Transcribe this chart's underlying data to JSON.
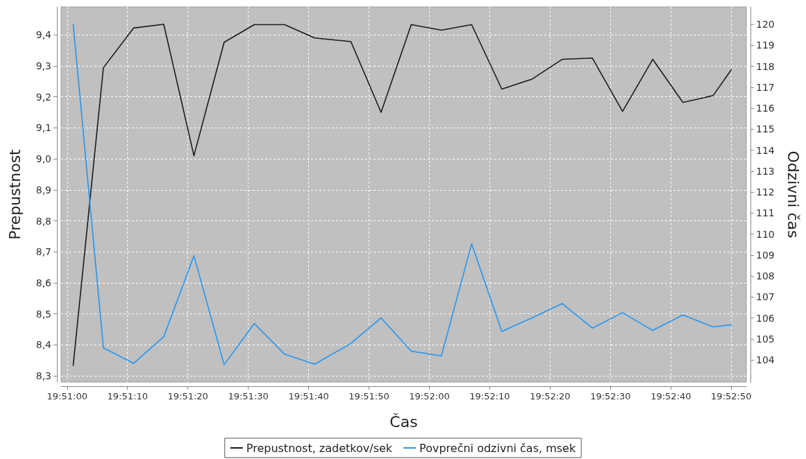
{
  "chart_data": {
    "type": "line",
    "xlabel": "Čas",
    "ylabel": "Prepustnost",
    "y2label": "Odzivni čas",
    "x": [
      19.850278,
      19.851667,
      19.853056,
      19.854444,
      19.855833,
      19.857222,
      19.858611,
      19.86,
      19.861389,
      19.863056,
      19.864444,
      19.865833,
      19.867222,
      19.868611,
      19.87,
      19.871389,
      19.872778,
      19.874167,
      19.875556,
      19.876944,
      19.878333,
      19.879722,
      19.880556
    ],
    "series": [
      {
        "name": "Prepustnost, zadetkov/sek",
        "color": "#1a1a1a",
        "values": [
          8.334,
          9.294,
          9.422,
          9.434,
          9.01,
          9.376,
          9.433,
          9.433,
          9.39,
          9.378,
          9.15,
          9.433,
          9.415,
          9.433,
          9.225,
          9.257,
          9.321,
          9.325,
          9.153,
          9.321,
          9.182,
          9.204,
          9.287
        ]
      },
      {
        "name": "Povprečni odzivni čas, msek",
        "color": "#2196f3",
        "axis": "y2",
        "values": [
          120.0,
          104.58,
          103.84,
          105.11,
          108.97,
          103.78,
          105.74,
          104.28,
          103.8,
          104.79,
          106.01,
          104.42,
          104.2,
          109.54,
          105.36,
          106.01,
          106.69,
          105.52,
          106.26,
          105.41,
          106.15,
          105.58,
          105.68
        ]
      }
    ],
    "xlim": [
      19.84972,
      19.88125
    ],
    "xticks": [
      {
        "value": 19.85,
        "label": "19:51:00"
      },
      {
        "value": 19.852778,
        "label": "19:51:10"
      },
      {
        "value": 19.855556,
        "label": "19:51:20"
      },
      {
        "value": 19.858333,
        "label": "19:51:30"
      },
      {
        "value": 19.861111,
        "label": "19:51:40"
      },
      {
        "value": 19.863889,
        "label": "19:51:50"
      },
      {
        "value": 19.866667,
        "label": "19:52:00"
      },
      {
        "value": 19.869444,
        "label": "19:52:10"
      },
      {
        "value": 19.872222,
        "label": "19:52:20"
      },
      {
        "value": 19.875,
        "label": "19:52:30"
      },
      {
        "value": 19.877778,
        "label": "19:52:40"
      },
      {
        "value": 19.880556,
        "label": "19:52:50"
      }
    ],
    "ylim": [
      8.28,
      9.49
    ],
    "yticks": [
      {
        "value": 8.3,
        "label": "8,3"
      },
      {
        "value": 8.4,
        "label": "8,4"
      },
      {
        "value": 8.5,
        "label": "8,5"
      },
      {
        "value": 8.6,
        "label": "8,6"
      },
      {
        "value": 8.7,
        "label": "8,7"
      },
      {
        "value": 8.8,
        "label": "8,8"
      },
      {
        "value": 8.9,
        "label": "8,9"
      },
      {
        "value": 9.0,
        "label": "9,0"
      },
      {
        "value": 9.1,
        "label": "9,1"
      },
      {
        "value": 9.2,
        "label": "9,2"
      },
      {
        "value": 9.3,
        "label": "9,3"
      },
      {
        "value": 9.4,
        "label": "9,4"
      }
    ],
    "y2lim": [
      102.95,
      120.83
    ],
    "y2ticks": [
      104,
      105,
      106,
      107,
      108,
      109,
      110,
      111,
      112,
      113,
      114,
      115,
      116,
      117,
      118,
      119,
      120
    ],
    "grid": true,
    "legend": "bottom"
  }
}
